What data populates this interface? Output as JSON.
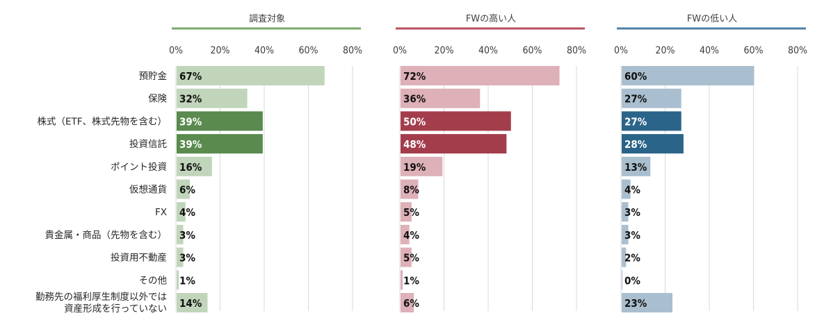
{
  "chart_data": {
    "type": "bar",
    "orientation": "horizontal",
    "categories": [
      "預貯金",
      "保険",
      "株式（ETF、株式先物を含む）",
      "投資信託",
      "ポイント投資",
      "仮想通貨",
      "FX",
      "貴金属・商品（先物を含む）",
      "投資用不動産",
      "その他",
      [
        "勤務先の福利厚生制度以外では",
        "資産形成を行っていない"
      ]
    ],
    "xlim": [
      0,
      80
    ],
    "xticks": [
      "0%",
      "20%",
      "40%",
      "60%",
      "80%"
    ],
    "grid": true,
    "series": [
      {
        "name": "調査対象",
        "values": [
          67,
          32,
          39,
          39,
          16,
          6,
          4,
          3,
          3,
          1,
          14
        ],
        "labels": [
          "67%",
          "32%",
          "39%",
          "39%",
          "16%",
          "6%",
          "4%",
          "3%",
          "3%",
          "1%",
          "14%"
        ],
        "highlighted": [
          false,
          false,
          true,
          true,
          false,
          false,
          false,
          false,
          false,
          false,
          false
        ],
        "color_light": "#c1d5bb",
        "color_dark": "#5a8a4e",
        "header_line_color": "#76a86a"
      },
      {
        "name": "FWの高い人",
        "values": [
          72,
          36,
          50,
          48,
          19,
          8,
          5,
          4,
          5,
          1,
          6
        ],
        "labels": [
          "72%",
          "36%",
          "50%",
          "48%",
          "19%",
          "8%",
          "5%",
          "4%",
          "5%",
          "1%",
          "6%"
        ],
        "highlighted": [
          false,
          false,
          true,
          true,
          false,
          false,
          false,
          false,
          false,
          false,
          false
        ],
        "color_light": "#deb0b8",
        "color_dark": "#a33d4c",
        "header_line_color": "#b84e5c"
      },
      {
        "name": "FWの低い人",
        "values": [
          60,
          27,
          27,
          28,
          13,
          4,
          3,
          3,
          2,
          0,
          23
        ],
        "labels": [
          "60%",
          "27%",
          "27%",
          "28%",
          "13%",
          "4%",
          "3%",
          "3%",
          "2%",
          "0%",
          "23%"
        ],
        "highlighted": [
          false,
          false,
          true,
          true,
          false,
          false,
          false,
          false,
          false,
          false,
          false
        ],
        "color_light": "#a9bfcf",
        "color_dark": "#2b6489",
        "header_line_color": "#4d7fa6"
      }
    ]
  }
}
